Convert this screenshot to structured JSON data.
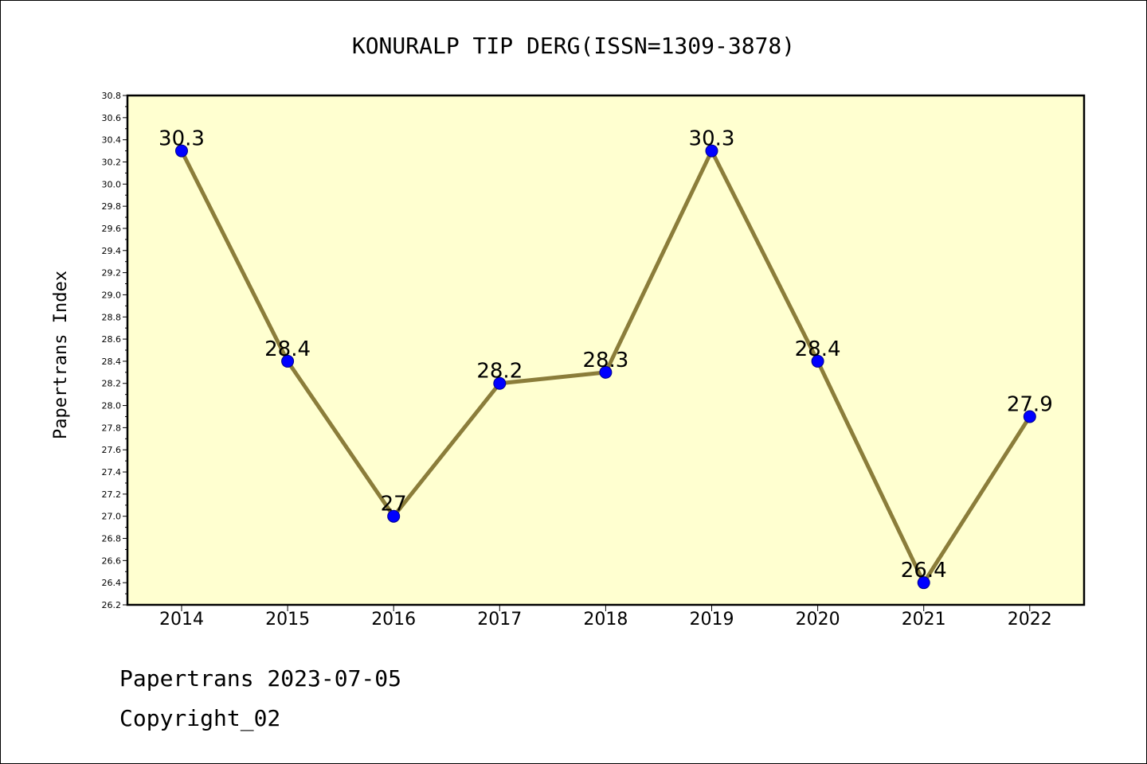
{
  "chart_data": {
    "type": "line",
    "title": "KONURALP TIP DERG(ISSN=1309-3878)",
    "xlabel": "",
    "ylabel": "Papertrans Index",
    "categories": [
      "2014",
      "2015",
      "2016",
      "2017",
      "2018",
      "2019",
      "2020",
      "2021",
      "2022"
    ],
    "series": [
      {
        "values": [
          30.3,
          28.4,
          27.0,
          28.2,
          28.3,
          30.3,
          28.4,
          26.4,
          27.9
        ],
        "labels": [
          "30.3",
          "28.4",
          "27",
          "28.2",
          "28.3",
          "30.3",
          "28.4",
          "26.4",
          "27.9"
        ]
      }
    ],
    "ylim": [
      26.2,
      30.8
    ],
    "yticks": [
      "26.2",
      "26.4",
      "26.6",
      "26.8",
      "27.0",
      "27.2",
      "27.4",
      "27.6",
      "27.8",
      "28.0",
      "28.2",
      "28.4",
      "28.6",
      "28.8",
      "29.0",
      "29.2",
      "29.4",
      "29.6",
      "29.8",
      "30.0",
      "30.2",
      "30.4",
      "30.6",
      "30.8"
    ],
    "grid": false,
    "legend": "none",
    "colors": {
      "plot_background": "#ffffd0",
      "line": "#8b7d3a",
      "marker": "#0000ff",
      "axis": "#000000"
    }
  },
  "footer": {
    "line1": "Papertrans 2023-07-05",
    "line2": "Copyright_02"
  }
}
